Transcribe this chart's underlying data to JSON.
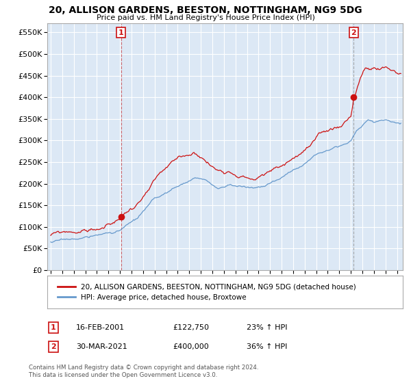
{
  "title": "20, ALLISON GARDENS, BEESTON, NOTTINGHAM, NG9 5DG",
  "subtitle": "Price paid vs. HM Land Registry's House Price Index (HPI)",
  "yticks": [
    0,
    50000,
    100000,
    150000,
    200000,
    250000,
    300000,
    350000,
    400000,
    450000,
    500000,
    550000
  ],
  "ytick_labels": [
    "£0",
    "£50K",
    "£100K",
    "£150K",
    "£200K",
    "£250K",
    "£300K",
    "£350K",
    "£400K",
    "£450K",
    "£500K",
    "£550K"
  ],
  "xlim_start": 1994.7,
  "xlim_end": 2025.5,
  "ylim_min": 0,
  "ylim_max": 572000,
  "sale1_x": 2001.12,
  "sale1_y": 122750,
  "sale1_label": "1",
  "sale2_x": 2021.25,
  "sale2_y": 400000,
  "sale2_label": "2",
  "red_color": "#cc1111",
  "blue_color": "#6699cc",
  "plot_bg_color": "#dce8f5",
  "fig_bg_color": "#ffffff",
  "grid_color": "#ffffff",
  "legend_red": "20, ALLISON GARDENS, BEESTON, NOTTINGHAM, NG9 5DG (detached house)",
  "legend_blue": "HPI: Average price, detached house, Broxtowe",
  "annotation1_date": "16-FEB-2001",
  "annotation1_price": "£122,750",
  "annotation1_hpi": "23% ↑ HPI",
  "annotation2_date": "30-MAR-2021",
  "annotation2_price": "£400,000",
  "annotation2_hpi": "36% ↑ HPI",
  "footer": "Contains HM Land Registry data © Crown copyright and database right 2024.\nThis data is licensed under the Open Government Licence v3.0."
}
